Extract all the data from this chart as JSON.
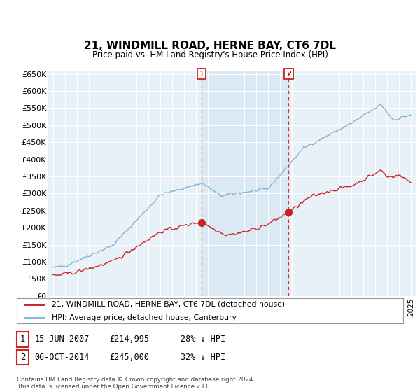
{
  "title": "21, WINDMILL ROAD, HERNE BAY, CT6 7DL",
  "subtitle": "Price paid vs. HM Land Registry's House Price Index (HPI)",
  "legend_line1": "21, WINDMILL ROAD, HERNE BAY, CT6 7DL (detached house)",
  "legend_line2": "HPI: Average price, detached house, Canterbury",
  "annotation1": {
    "label": "1",
    "date": "15-JUN-2007",
    "price": "£214,995",
    "note": "28% ↓ HPI",
    "year": 2007.46
  },
  "annotation2": {
    "label": "2",
    "date": "06-OCT-2014",
    "price": "£245,000",
    "note": "32% ↓ HPI",
    "year": 2014.75
  },
  "footer": "Contains HM Land Registry data © Crown copyright and database right 2024.\nThis data is licensed under the Open Government Licence v3.0.",
  "hpi_color": "#7ab0d4",
  "hpi_fill_color": "#d8e8f3",
  "price_color": "#cc2222",
  "background_color": "#e8f0f8",
  "ylim": [
    0,
    660000
  ],
  "yticks": [
    0,
    50000,
    100000,
    150000,
    200000,
    250000,
    300000,
    350000,
    400000,
    450000,
    500000,
    550000,
    600000,
    650000
  ],
  "xlim_start": 1994.6,
  "xlim_end": 2025.4
}
